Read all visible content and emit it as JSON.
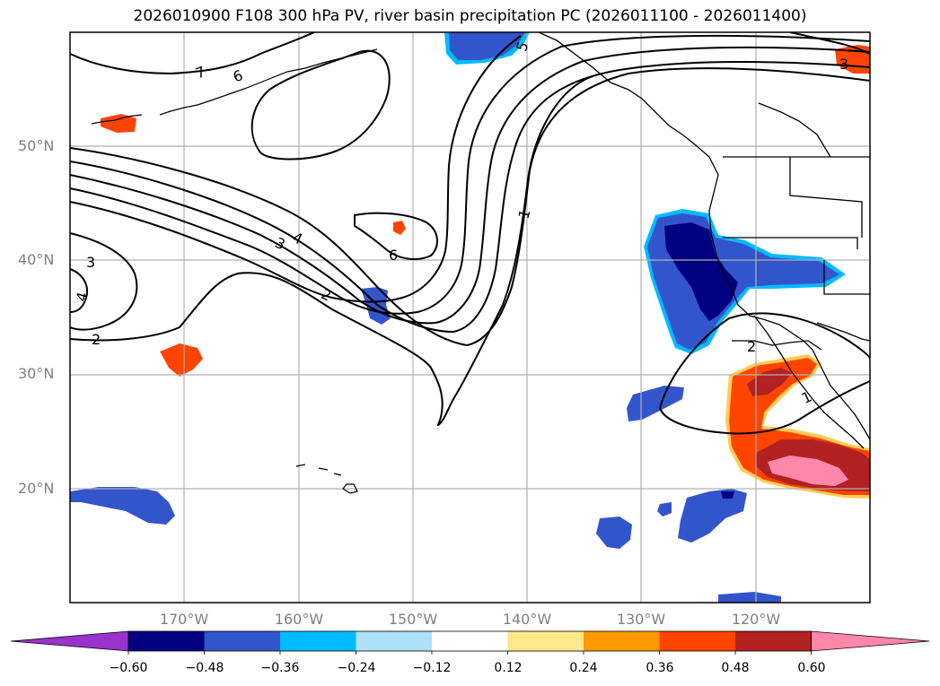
{
  "title": "2026010900 F108 300 hPa PV, river basin precipitation PC (2026011100 - 2026011400)",
  "map": {
    "lat_labels": [
      "50°N",
      "40°N",
      "30°N",
      "20°N"
    ],
    "lon_labels": [
      "170°W",
      "160°W",
      "150°W",
      "140°W",
      "130°W",
      "120°W"
    ],
    "pv_contour_labels": [
      "1",
      "2",
      "2",
      "2",
      "3",
      "3",
      "3",
      "4",
      "4",
      "5",
      "6",
      "6",
      "7",
      "1"
    ]
  },
  "colorbar": {
    "colors": [
      "#9933cc",
      "#000080",
      "#3355cc",
      "#00bbff",
      "#aee0f8",
      "#ffffff",
      "#fde98a",
      "#ff9900",
      "#ff4400",
      "#b22222",
      "#ff88aa"
    ],
    "tick_labels": [
      "−0.60",
      "−0.48",
      "−0.36",
      "−0.24",
      "−0.12",
      "0.12",
      "0.24",
      "0.36",
      "0.48",
      "0.60"
    ]
  }
}
